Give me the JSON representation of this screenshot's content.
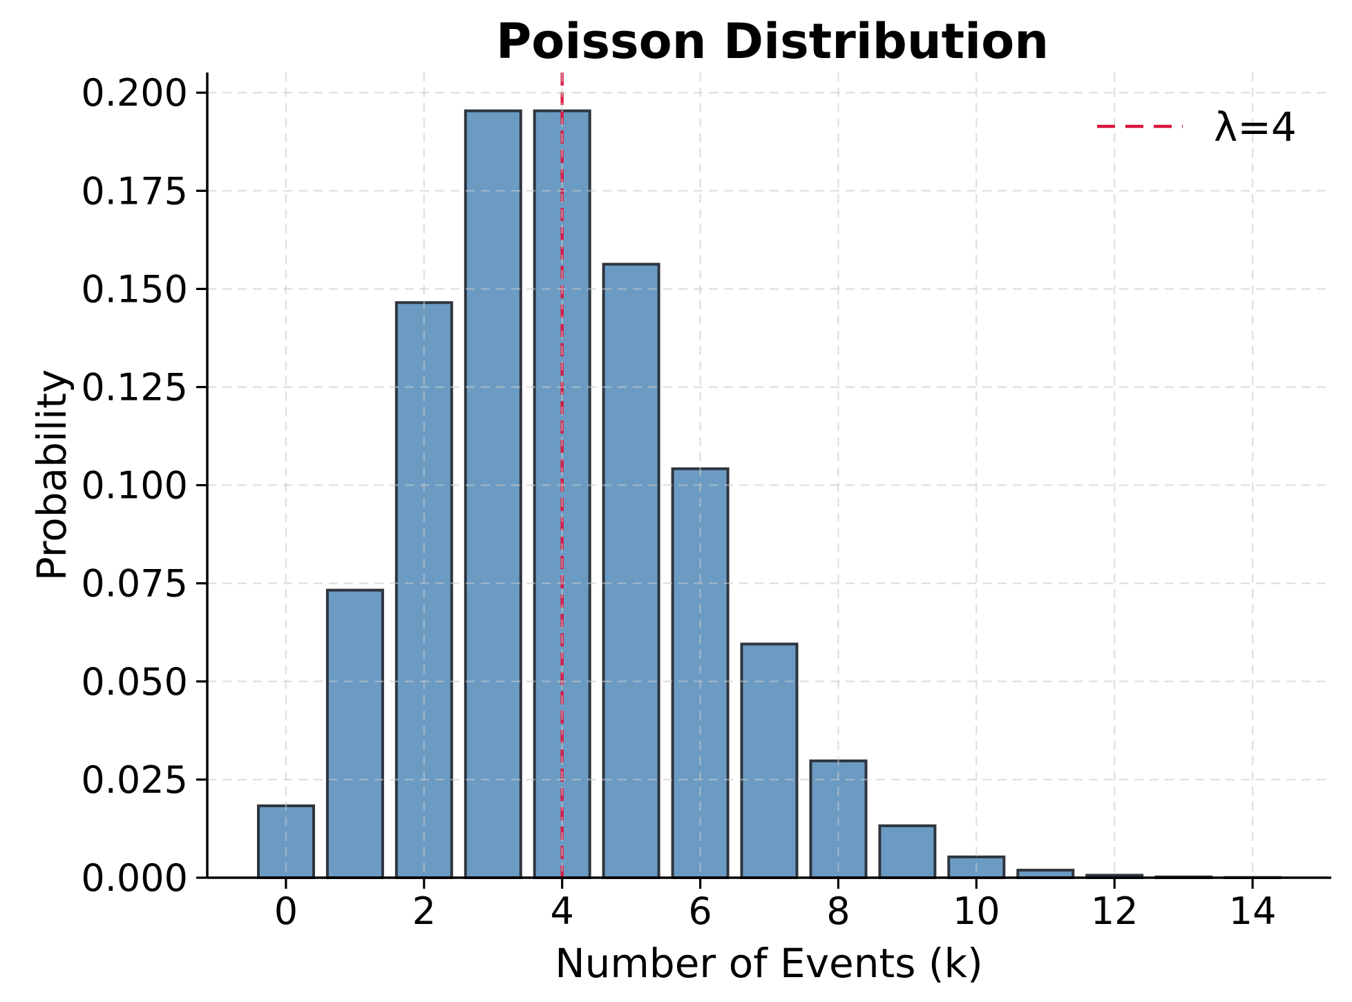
{
  "chart_data": {
    "type": "bar",
    "title": "Poisson Distribution",
    "xlabel": "Number of Events (k)",
    "ylabel": "Probability",
    "categories": [
      0,
      1,
      2,
      3,
      4,
      5,
      6,
      7,
      8,
      9,
      10,
      11,
      12,
      13,
      14
    ],
    "values": [
      0.018316,
      0.073263,
      0.146525,
      0.195367,
      0.195367,
      0.156293,
      0.104196,
      0.05954,
      0.02977,
      0.013231,
      0.005292,
      0.001925,
      0.000642,
      0.000197,
      5.6e-05
    ],
    "bar_width": 0.8,
    "xlim": [
      -1.14,
      15.14
    ],
    "ylim": [
      0,
      0.20514
    ],
    "x_ticks": {
      "values": [
        0,
        2,
        4,
        6,
        8,
        10,
        12,
        14
      ],
      "labels": [
        "0",
        "2",
        "4",
        "6",
        "8",
        "10",
        "12",
        "14"
      ]
    },
    "y_ticks": {
      "values": [
        0.0,
        0.025,
        0.05,
        0.075,
        0.1,
        0.125,
        0.15,
        0.175,
        0.2
      ],
      "labels": [
        "0.000",
        "0.025",
        "0.050",
        "0.075",
        "0.100",
        "0.125",
        "0.150",
        "0.175",
        "0.200"
      ]
    },
    "grid": {
      "visible": true,
      "style": "dashed"
    },
    "vline": {
      "x": 4,
      "style": "dashed"
    },
    "legend": {
      "position": "upper right",
      "entries": [
        {
          "label": "λ=4",
          "marker": "dashed-line",
          "color": "#DC143C"
        }
      ]
    },
    "colors": {
      "bar_fill": "#4682B4",
      "bar_fill_opacity": "0.8",
      "bar_edge": "#2E353E",
      "vline": "#DC143C",
      "grid": "#C9C9C9",
      "axis": "#000000",
      "text": "#000000",
      "background": "#FFFFFF"
    }
  }
}
